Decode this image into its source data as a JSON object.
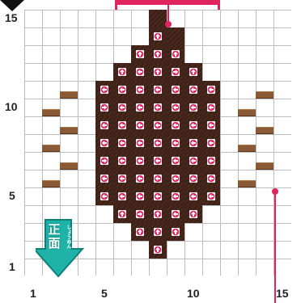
{
  "x_labels": [
    {
      "text": "1",
      "col": 1
    },
    {
      "text": "5",
      "col": 5
    },
    {
      "text": "10",
      "col": 10
    },
    {
      "text": "15",
      "col": 15
    }
  ],
  "y_labels": [
    {
      "text": "15",
      "row": 15
    },
    {
      "text": "10",
      "row": 10
    },
    {
      "text": "5",
      "row": 5
    },
    {
      "text": "1",
      "row": 1
    }
  ],
  "front_badge": {
    "label": "正面",
    "reading": "しょうめん",
    "arrow": "down"
  },
  "block_rows": [
    {
      "row": 15,
      "cols": [
        8
      ]
    },
    {
      "row": 14,
      "cols": [
        8,
        9
      ]
    },
    {
      "row": 13,
      "cols": [
        7,
        8,
        9
      ]
    },
    {
      "row": 12,
      "cols": [
        6,
        7,
        8,
        9,
        10
      ]
    },
    {
      "row": 11,
      "cols": [
        5,
        6,
        7,
        8,
        9,
        10,
        11
      ]
    },
    {
      "row": 10,
      "cols": [
        5,
        6,
        7,
        8,
        9,
        10,
        11
      ]
    },
    {
      "row": 9,
      "cols": [
        5,
        6,
        7,
        8,
        9,
        10,
        11
      ]
    },
    {
      "row": 8,
      "cols": [
        5,
        6,
        7,
        8,
        9,
        10,
        11
      ]
    },
    {
      "row": 7,
      "cols": [
        5,
        6,
        7,
        8,
        9,
        10,
        11
      ]
    },
    {
      "row": 6,
      "cols": [
        5,
        6,
        7,
        8,
        9,
        10,
        11
      ]
    },
    {
      "row": 5,
      "cols": [
        5,
        6,
        7,
        8,
        9,
        10,
        11
      ]
    },
    {
      "row": 4,
      "cols": [
        6,
        7,
        8,
        9,
        10
      ]
    },
    {
      "row": 3,
      "cols": [
        7,
        8,
        9
      ]
    },
    {
      "row": 2,
      "cols": [
        8
      ]
    }
  ],
  "arrow_tokens": [
    {
      "row": 14,
      "col": 8,
      "dir": "up"
    },
    {
      "row": 13,
      "col": 7,
      "dir": "up"
    },
    {
      "row": 13,
      "col": 8,
      "dir": "up"
    },
    {
      "row": 13,
      "col": 9,
      "dir": "up"
    },
    {
      "row": 12,
      "col": 6,
      "dir": "up"
    },
    {
      "row": 12,
      "col": 7,
      "dir": "left"
    },
    {
      "row": 12,
      "col": 8,
      "dir": "up"
    },
    {
      "row": 12,
      "col": 9,
      "dir": "right"
    },
    {
      "row": 12,
      "col": 10,
      "dir": "up"
    },
    {
      "row": 11,
      "col": 5,
      "dir": "left"
    },
    {
      "row": 11,
      "col": 6,
      "dir": "left"
    },
    {
      "row": 11,
      "col": 7,
      "dir": "left"
    },
    {
      "row": 11,
      "col": 8,
      "dir": "left"
    },
    {
      "row": 11,
      "col": 9,
      "dir": "left"
    },
    {
      "row": 11,
      "col": 10,
      "dir": "left"
    },
    {
      "row": 11,
      "col": 11,
      "dir": "left"
    },
    {
      "row": 10,
      "col": 5,
      "dir": "right"
    },
    {
      "row": 10,
      "col": 6,
      "dir": "left"
    },
    {
      "row": 10,
      "col": 7,
      "dir": "left"
    },
    {
      "row": 10,
      "col": 8,
      "dir": "left"
    },
    {
      "row": 10,
      "col": 9,
      "dir": "left"
    },
    {
      "row": 10,
      "col": 10,
      "dir": "left"
    },
    {
      "row": 10,
      "col": 11,
      "dir": "left"
    },
    {
      "row": 9,
      "col": 5,
      "dir": "left"
    },
    {
      "row": 9,
      "col": 6,
      "dir": "left"
    },
    {
      "row": 9,
      "col": 7,
      "dir": "left"
    },
    {
      "row": 9,
      "col": 8,
      "dir": "left"
    },
    {
      "row": 9,
      "col": 9,
      "dir": "left"
    },
    {
      "row": 9,
      "col": 10,
      "dir": "left"
    },
    {
      "row": 9,
      "col": 11,
      "dir": "left"
    },
    {
      "row": 8,
      "col": 5,
      "dir": "left"
    },
    {
      "row": 8,
      "col": 6,
      "dir": "left"
    },
    {
      "row": 8,
      "col": 7,
      "dir": "left"
    },
    {
      "row": 8,
      "col": 8,
      "dir": "left"
    },
    {
      "row": 8,
      "col": 9,
      "dir": "left"
    },
    {
      "row": 8,
      "col": 10,
      "dir": "left"
    },
    {
      "row": 8,
      "col": 11,
      "dir": "left"
    },
    {
      "row": 7,
      "col": 5,
      "dir": "right"
    },
    {
      "row": 7,
      "col": 6,
      "dir": "left"
    },
    {
      "row": 7,
      "col": 7,
      "dir": "left"
    },
    {
      "row": 7,
      "col": 8,
      "dir": "left"
    },
    {
      "row": 7,
      "col": 9,
      "dir": "left"
    },
    {
      "row": 7,
      "col": 10,
      "dir": "left"
    },
    {
      "row": 7,
      "col": 11,
      "dir": "left"
    },
    {
      "row": 6,
      "col": 5,
      "dir": "left"
    },
    {
      "row": 6,
      "col": 6,
      "dir": "left"
    },
    {
      "row": 6,
      "col": 7,
      "dir": "left"
    },
    {
      "row": 6,
      "col": 8,
      "dir": "left"
    },
    {
      "row": 6,
      "col": 9,
      "dir": "left"
    },
    {
      "row": 6,
      "col": 10,
      "dir": "left"
    },
    {
      "row": 6,
      "col": 11,
      "dir": "left"
    },
    {
      "row": 5,
      "col": 5,
      "dir": "left"
    },
    {
      "row": 5,
      "col": 6,
      "dir": "left"
    },
    {
      "row": 5,
      "col": 7,
      "dir": "left"
    },
    {
      "row": 5,
      "col": 8,
      "dir": "left"
    },
    {
      "row": 5,
      "col": 9,
      "dir": "left"
    },
    {
      "row": 5,
      "col": 10,
      "dir": "left"
    },
    {
      "row": 5,
      "col": 11,
      "dir": "left"
    },
    {
      "row": 4,
      "col": 6,
      "dir": "up"
    },
    {
      "row": 4,
      "col": 7,
      "dir": "right"
    },
    {
      "row": 4,
      "col": 8,
      "dir": "up"
    },
    {
      "row": 4,
      "col": 9,
      "dir": "left"
    },
    {
      "row": 4,
      "col": 10,
      "dir": "up"
    },
    {
      "row": 3,
      "col": 7,
      "dir": "up"
    },
    {
      "row": 3,
      "col": 8,
      "dir": "up"
    },
    {
      "row": 3,
      "col": 9,
      "dir": "up"
    },
    {
      "row": 2,
      "col": 8,
      "dir": "up"
    }
  ],
  "planks": [
    {
      "row": 10,
      "col": 2,
      "align": "bottom"
    },
    {
      "row": 11,
      "col": 3,
      "align": "bottom"
    },
    {
      "row": 10,
      "col": 13,
      "align": "bottom"
    },
    {
      "row": 11,
      "col": 14,
      "align": "bottom"
    },
    {
      "row": 8,
      "col": 2,
      "align": "bottom"
    },
    {
      "row": 9,
      "col": 3,
      "align": "bottom"
    },
    {
      "row": 8,
      "col": 13,
      "align": "bottom"
    },
    {
      "row": 9,
      "col": 14,
      "align": "bottom"
    },
    {
      "row": 6,
      "col": 2,
      "align": "bottom"
    },
    {
      "row": 7,
      "col": 3,
      "align": "bottom"
    },
    {
      "row": 6,
      "col": 13,
      "align": "bottom"
    },
    {
      "row": 7,
      "col": 14,
      "align": "bottom"
    }
  ],
  "colors": {
    "block": "#3e1f14",
    "pointer": "#e0245e",
    "badge": "#1fb3a8",
    "arrow_token": "#e0245e",
    "plank": "#8a5a36"
  }
}
